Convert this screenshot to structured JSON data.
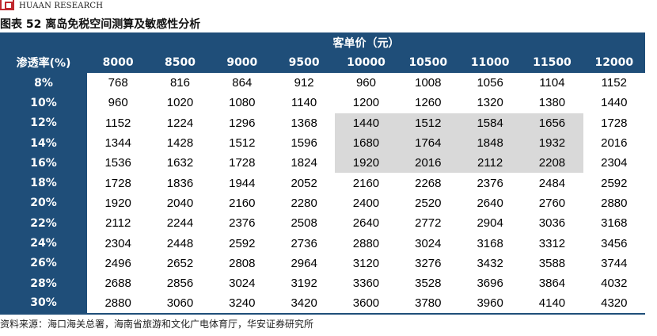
{
  "logo": {
    "text": "HUAAN RESEARCH"
  },
  "figure_title": "图表 52  离岛免税空间测算及敏感性分析",
  "table": {
    "group_header": "客单价（元）",
    "row_header_label": "渗透率(%)",
    "columns": [
      "8000",
      "8500",
      "9000",
      "9500",
      "10000",
      "10500",
      "11000",
      "11500",
      "12000"
    ],
    "rows": [
      {
        "label": "8%",
        "values": [
          "768",
          "816",
          "864",
          "912",
          "960",
          "1008",
          "1056",
          "1104",
          "1152"
        ]
      },
      {
        "label": "10%",
        "values": [
          "960",
          "1020",
          "1080",
          "1140",
          "1200",
          "1260",
          "1320",
          "1380",
          "1440"
        ]
      },
      {
        "label": "12%",
        "values": [
          "1152",
          "1224",
          "1296",
          "1368",
          "1440",
          "1512",
          "1584",
          "1656",
          "1728"
        ]
      },
      {
        "label": "14%",
        "values": [
          "1344",
          "1428",
          "1512",
          "1596",
          "1680",
          "1764",
          "1848",
          "1932",
          "2016"
        ]
      },
      {
        "label": "16%",
        "values": [
          "1536",
          "1632",
          "1728",
          "1824",
          "1920",
          "2016",
          "2112",
          "2208",
          "2304"
        ]
      },
      {
        "label": "18%",
        "values": [
          "1728",
          "1836",
          "1944",
          "2052",
          "2160",
          "2268",
          "2376",
          "2484",
          "2592"
        ]
      },
      {
        "label": "20%",
        "values": [
          "1920",
          "2040",
          "2160",
          "2280",
          "2400",
          "2520",
          "2640",
          "2760",
          "2880"
        ]
      },
      {
        "label": "22%",
        "values": [
          "2112",
          "2244",
          "2376",
          "2508",
          "2640",
          "2772",
          "2904",
          "3036",
          "3168"
        ]
      },
      {
        "label": "24%",
        "values": [
          "2304",
          "2448",
          "2592",
          "2736",
          "2880",
          "3024",
          "3168",
          "3312",
          "3456"
        ]
      },
      {
        "label": "26%",
        "values": [
          "2496",
          "2652",
          "2808",
          "2964",
          "3120",
          "3276",
          "3432",
          "3588",
          "3744"
        ]
      },
      {
        "label": "28%",
        "values": [
          "2688",
          "2856",
          "3024",
          "3192",
          "3360",
          "3528",
          "3696",
          "3864",
          "4032"
        ]
      },
      {
        "label": "30%",
        "values": [
          "2880",
          "3060",
          "3240",
          "3420",
          "3600",
          "3780",
          "3960",
          "4140",
          "4320"
        ]
      }
    ],
    "highlight": {
      "rows": [
        2,
        3,
        4
      ],
      "cols": [
        4,
        5,
        6,
        7
      ],
      "color": "#d9d9d9"
    },
    "header_color": "#1f4e79"
  },
  "source_note": "资料来源：海口海关总署，海南省旅游和文化广电体育厅，华安证券研究所"
}
